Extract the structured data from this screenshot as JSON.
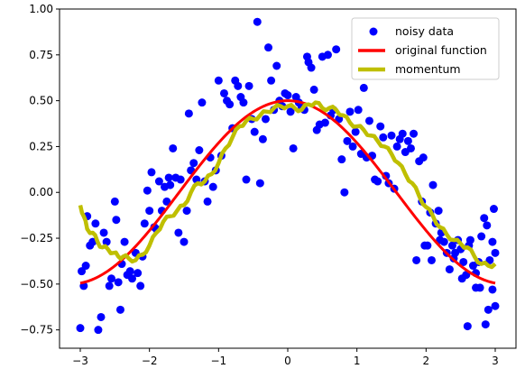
{
  "chart_data": {
    "type": "scatter",
    "xlim": [
      -3.3,
      3.3
    ],
    "ylim": [
      -0.85,
      1.0
    ],
    "grid": false,
    "legend_position": "top-right",
    "x_ticks": [
      -3,
      -2,
      -1,
      0,
      1,
      2,
      3
    ],
    "x_tick_labels": [
      "−3",
      "−2",
      "−1",
      "0",
      "1",
      "2",
      "3"
    ],
    "y_ticks": [
      -0.75,
      -0.5,
      -0.25,
      0.0,
      0.25,
      0.5,
      0.75,
      1.0
    ],
    "y_tick_labels": [
      "−0.75",
      "−0.50",
      "−0.25",
      "0.00",
      "0.25",
      "0.50",
      "0.75",
      "1.00"
    ],
    "series": [
      {
        "name": "noisy data",
        "kind": "scatter",
        "color": "#0000ff",
        "points": [
          [
            -3.0,
            -0.74
          ],
          [
            -2.98,
            -0.43
          ],
          [
            -2.95,
            -0.51
          ],
          [
            -2.92,
            -0.4
          ],
          [
            -2.9,
            -0.13
          ],
          [
            -2.86,
            -0.29
          ],
          [
            -2.82,
            -0.27
          ],
          [
            -2.78,
            -0.17
          ],
          [
            -2.74,
            -0.75
          ],
          [
            -2.7,
            -0.68
          ],
          [
            -2.66,
            -0.22
          ],
          [
            -2.62,
            -0.27
          ],
          [
            -2.58,
            -0.51
          ],
          [
            -2.55,
            -0.47
          ],
          [
            -2.5,
            -0.05
          ],
          [
            -2.48,
            -0.15
          ],
          [
            -2.45,
            -0.49
          ],
          [
            -2.42,
            -0.64
          ],
          [
            -2.4,
            -0.39
          ],
          [
            -2.36,
            -0.27
          ],
          [
            -2.32,
            -0.45
          ],
          [
            -2.28,
            -0.43
          ],
          [
            -2.25,
            -0.47
          ],
          [
            -2.2,
            -0.33
          ],
          [
            -2.17,
            -0.44
          ],
          [
            -2.13,
            -0.51
          ],
          [
            -2.1,
            -0.35
          ],
          [
            -2.07,
            -0.17
          ],
          [
            -2.03,
            0.01
          ],
          [
            -2.0,
            -0.1
          ],
          [
            -1.97,
            0.11
          ],
          [
            -1.93,
            -0.19
          ],
          [
            -1.9,
            -0.2
          ],
          [
            -1.86,
            0.06
          ],
          [
            -1.82,
            -0.1
          ],
          [
            -1.78,
            0.03
          ],
          [
            -1.75,
            -0.05
          ],
          [
            -1.72,
            0.08
          ],
          [
            -1.7,
            0.04
          ],
          [
            -1.66,
            0.24
          ],
          [
            -1.62,
            0.08
          ],
          [
            -1.58,
            -0.22
          ],
          [
            -1.55,
            0.07
          ],
          [
            -1.5,
            -0.27
          ],
          [
            -1.46,
            -0.1
          ],
          [
            -1.43,
            0.43
          ],
          [
            -1.4,
            0.12
          ],
          [
            -1.36,
            0.16
          ],
          [
            -1.32,
            0.07
          ],
          [
            -1.28,
            0.23
          ],
          [
            -1.24,
            0.49
          ],
          [
            -1.2,
            0.06
          ],
          [
            -1.16,
            -0.05
          ],
          [
            -1.12,
            0.19
          ],
          [
            -1.08,
            0.03
          ],
          [
            -1.04,
            0.12
          ],
          [
            -1.0,
            0.61
          ],
          [
            -0.96,
            0.2
          ],
          [
            -0.92,
            0.54
          ],
          [
            -0.88,
            0.5
          ],
          [
            -0.84,
            0.48
          ],
          [
            -0.8,
            0.35
          ],
          [
            -0.76,
            0.61
          ],
          [
            -0.72,
            0.58
          ],
          [
            -0.68,
            0.52
          ],
          [
            -0.64,
            0.49
          ],
          [
            -0.6,
            0.07
          ],
          [
            -0.56,
            0.58
          ],
          [
            -0.52,
            0.4
          ],
          [
            -0.48,
            0.33
          ],
          [
            -0.44,
            0.93
          ],
          [
            -0.4,
            0.05
          ],
          [
            -0.36,
            0.29
          ],
          [
            -0.32,
            0.4
          ],
          [
            -0.28,
            0.79
          ],
          [
            -0.24,
            0.61
          ],
          [
            -0.2,
            0.45
          ],
          [
            -0.16,
            0.69
          ],
          [
            -0.12,
            0.5
          ],
          [
            -0.08,
            0.47
          ],
          [
            -0.04,
            0.54
          ],
          [
            0.0,
            0.53
          ],
          [
            0.04,
            0.44
          ],
          [
            0.08,
            0.24
          ],
          [
            0.12,
            0.52
          ],
          [
            0.16,
            0.49
          ],
          [
            0.2,
            0.47
          ],
          [
            0.24,
            0.45
          ],
          [
            0.28,
            0.74
          ],
          [
            0.3,
            0.71
          ],
          [
            0.34,
            0.68
          ],
          [
            0.38,
            0.56
          ],
          [
            0.42,
            0.34
          ],
          [
            0.46,
            0.37
          ],
          [
            0.5,
            0.74
          ],
          [
            0.54,
            0.38
          ],
          [
            0.58,
            0.75
          ],
          [
            0.62,
            0.42
          ],
          [
            0.66,
            0.45
          ],
          [
            0.7,
            0.78
          ],
          [
            0.74,
            0.4
          ],
          [
            0.78,
            0.18
          ],
          [
            0.82,
            0.0
          ],
          [
            0.86,
            0.28
          ],
          [
            0.9,
            0.44
          ],
          [
            0.94,
            0.25
          ],
          [
            0.98,
            0.33
          ],
          [
            1.02,
            0.45
          ],
          [
            1.06,
            0.21
          ],
          [
            1.1,
            0.57
          ],
          [
            1.14,
            0.19
          ],
          [
            1.18,
            0.39
          ],
          [
            1.22,
            0.2
          ],
          [
            1.26,
            0.07
          ],
          [
            1.3,
            0.06
          ],
          [
            1.34,
            0.36
          ],
          [
            1.38,
            0.3
          ],
          [
            1.42,
            0.09
          ],
          [
            1.46,
            0.05
          ],
          [
            1.5,
            0.31
          ],
          [
            1.54,
            0.02
          ],
          [
            1.58,
            0.25
          ],
          [
            1.62,
            0.29
          ],
          [
            1.66,
            0.32
          ],
          [
            1.7,
            0.22
          ],
          [
            1.74,
            0.28
          ],
          [
            1.78,
            0.24
          ],
          [
            1.82,
            0.32
          ],
          [
            1.86,
            -0.37
          ],
          [
            1.9,
            0.17
          ],
          [
            1.94,
            -0.05
          ],
          [
            1.98,
            -0.29
          ],
          [
            2.02,
            -0.29
          ],
          [
            2.06,
            -0.11
          ],
          [
            2.1,
            0.04
          ],
          [
            2.14,
            -0.17
          ],
          [
            2.18,
            -0.1
          ],
          [
            2.22,
            -0.22
          ],
          [
            2.26,
            -0.27
          ],
          [
            2.3,
            -0.33
          ],
          [
            2.34,
            -0.42
          ],
          [
            2.38,
            -0.29
          ],
          [
            2.42,
            -0.33
          ],
          [
            2.46,
            -0.26
          ],
          [
            2.5,
            -0.31
          ],
          [
            2.54,
            -0.38
          ],
          [
            2.58,
            -0.45
          ],
          [
            2.6,
            -0.73
          ],
          [
            2.64,
            -0.26
          ],
          [
            2.68,
            -0.4
          ],
          [
            2.72,
            -0.52
          ],
          [
            2.76,
            -0.38
          ],
          [
            2.8,
            -0.24
          ],
          [
            2.84,
            -0.14
          ],
          [
            2.88,
            -0.18
          ],
          [
            2.92,
            -0.37
          ],
          [
            2.96,
            -0.27
          ],
          [
            3.0,
            -0.33
          ],
          [
            1.96,
            0.19
          ],
          [
            2.08,
            -0.37
          ],
          [
            2.2,
            -0.26
          ],
          [
            2.4,
            -0.36
          ],
          [
            2.52,
            -0.47
          ],
          [
            2.62,
            -0.29
          ],
          [
            2.72,
            -0.44
          ],
          [
            2.86,
            -0.72
          ],
          [
            2.9,
            -0.64
          ],
          [
            2.96,
            -0.53
          ],
          [
            2.98,
            -0.09
          ],
          [
            3.0,
            -0.62
          ],
          [
            2.78,
            -0.52
          ]
        ]
      },
      {
        "name": "original function",
        "kind": "line",
        "color": "#ff0000",
        "function": "0.5*cos(x)",
        "x_range": [
          -3.0,
          3.0
        ]
      },
      {
        "name": "momentum",
        "kind": "line",
        "color": "#bfbf00",
        "points": [
          [
            -3.0,
            -0.07
          ],
          [
            -2.95,
            -0.13
          ],
          [
            -2.9,
            -0.2
          ],
          [
            -2.82,
            -0.22
          ],
          [
            -2.75,
            -0.27
          ],
          [
            -2.68,
            -0.3
          ],
          [
            -2.6,
            -0.31
          ],
          [
            -2.52,
            -0.33
          ],
          [
            -2.45,
            -0.35
          ],
          [
            -2.38,
            -0.35
          ],
          [
            -2.3,
            -0.36
          ],
          [
            -2.2,
            -0.37
          ],
          [
            -2.1,
            -0.34
          ],
          [
            -2.0,
            -0.29
          ],
          [
            -1.9,
            -0.22
          ],
          [
            -1.8,
            -0.16
          ],
          [
            -1.7,
            -0.13
          ],
          [
            -1.6,
            -0.1
          ],
          [
            -1.5,
            -0.07
          ],
          [
            -1.4,
            0.0
          ],
          [
            -1.3,
            0.05
          ],
          [
            -1.2,
            0.06
          ],
          [
            -1.1,
            0.1
          ],
          [
            -1.0,
            0.16
          ],
          [
            -0.9,
            0.24
          ],
          [
            -0.8,
            0.3
          ],
          [
            -0.7,
            0.36
          ],
          [
            -0.6,
            0.39
          ],
          [
            -0.5,
            0.4
          ],
          [
            -0.4,
            0.42
          ],
          [
            -0.3,
            0.44
          ],
          [
            -0.2,
            0.46
          ],
          [
            -0.1,
            0.47
          ],
          [
            0.0,
            0.47
          ],
          [
            0.1,
            0.46
          ],
          [
            0.2,
            0.45
          ],
          [
            0.3,
            0.48
          ],
          [
            0.4,
            0.49
          ],
          [
            0.5,
            0.46
          ],
          [
            0.6,
            0.46
          ],
          [
            0.7,
            0.45
          ],
          [
            0.8,
            0.42
          ],
          [
            0.9,
            0.38
          ],
          [
            1.0,
            0.36
          ],
          [
            1.1,
            0.34
          ],
          [
            1.2,
            0.31
          ],
          [
            1.3,
            0.28
          ],
          [
            1.4,
            0.25
          ],
          [
            1.5,
            0.21
          ],
          [
            1.6,
            0.16
          ],
          [
            1.7,
            0.1
          ],
          [
            1.8,
            0.05
          ],
          [
            1.9,
            -0.02
          ],
          [
            2.0,
            -0.08
          ],
          [
            2.1,
            -0.13
          ],
          [
            2.2,
            -0.19
          ],
          [
            2.3,
            -0.23
          ],
          [
            2.4,
            -0.26
          ],
          [
            2.5,
            -0.28
          ],
          [
            2.6,
            -0.3
          ],
          [
            2.7,
            -0.35
          ],
          [
            2.8,
            -0.39
          ],
          [
            2.9,
            -0.4
          ],
          [
            3.0,
            -0.39
          ]
        ]
      }
    ]
  }
}
